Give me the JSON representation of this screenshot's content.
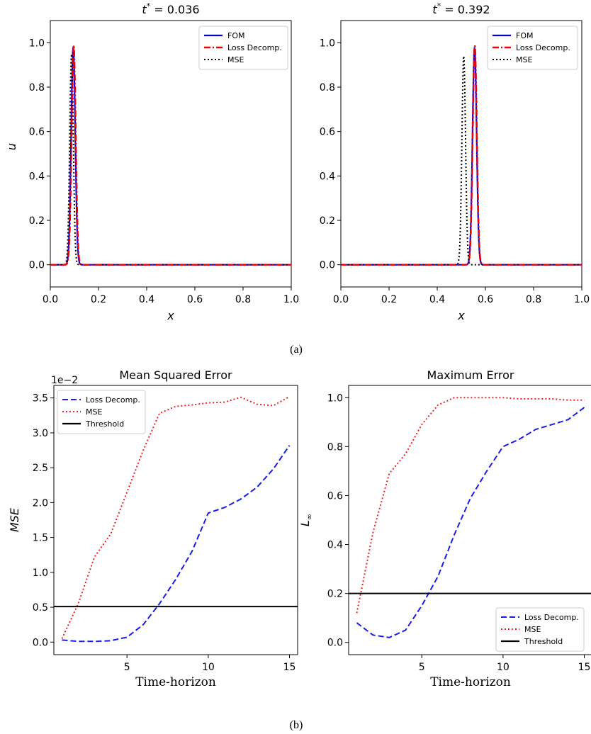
{
  "captions": [
    "(a)",
    "(b)"
  ],
  "colors": {
    "fom": "#0000ee",
    "loss": "#ee0000",
    "mse_dotted": "#000000",
    "loss_b": "#1a1aee",
    "mse_b": "#ee2020",
    "threshold": "#000000"
  },
  "chart_data": [
    {
      "type": "line",
      "title": "t* = 0.036",
      "title_var": "t",
      "title_sup": "*",
      "title_rest": " = 0.036",
      "xlabel": "x",
      "ylabel": "u",
      "xlim": [
        0,
        1
      ],
      "ylim": [
        -0.1,
        1.1
      ],
      "xticks": [
        "0.0",
        "0.2",
        "0.4",
        "0.6",
        "0.8",
        "1.0"
      ],
      "yticks": [
        "0.0",
        "0.2",
        "0.4",
        "0.6",
        "0.8",
        "1.0"
      ],
      "legend_position": "top-right",
      "series": [
        {
          "name": "FOM",
          "style": "solid",
          "peak_x": 0.095,
          "peak_y": 0.98,
          "width": 0.0085
        },
        {
          "name": "Loss Decomp.",
          "style": "dashdot",
          "peak_x": 0.097,
          "peak_y": 0.99,
          "width": 0.0085
        },
        {
          "name": "MSE",
          "style": "dotted",
          "peak_x": 0.088,
          "peak_y": 0.95,
          "width": 0.0075
        }
      ]
    },
    {
      "type": "line",
      "title": "t* = 0.392",
      "title_var": "t",
      "title_sup": "*",
      "title_rest": " = 0.392",
      "xlabel": "x",
      "ylabel": "",
      "xlim": [
        0,
        1
      ],
      "ylim": [
        -0.1,
        1.1
      ],
      "xticks": [
        "0.0",
        "0.2",
        "0.4",
        "0.6",
        "0.8",
        "1.0"
      ],
      "yticks": [
        "0.0",
        "0.2",
        "0.4",
        "0.6",
        "0.8",
        "1.0"
      ],
      "legend_position": "top-right",
      "series": [
        {
          "name": "FOM",
          "style": "solid",
          "peak_x": 0.555,
          "peak_y": 0.98,
          "width": 0.0085
        },
        {
          "name": "Loss Decomp.",
          "style": "dashdot",
          "peak_x": 0.556,
          "peak_y": 0.99,
          "width": 0.0085
        },
        {
          "name": "MSE",
          "style": "dotted",
          "peak_x": 0.51,
          "peak_y": 0.94,
          "width": 0.0075
        }
      ]
    },
    {
      "type": "line",
      "title": "Mean Squared Error",
      "xlabel": "Time-horizon",
      "ylabel": "MSE",
      "y_multiplier": "1e−2",
      "xlim": [
        0.5,
        15.5
      ],
      "ylim": [
        -0.18,
        3.68
      ],
      "xticks": [
        5,
        10,
        15
      ],
      "yticks": [
        "0.0",
        "0.5",
        "1.0",
        "1.5",
        "2.0",
        "2.5",
        "3.0",
        "3.5"
      ],
      "ytick_values": [
        0,
        0.5,
        1.0,
        1.5,
        2.0,
        2.5,
        3.0,
        3.5
      ],
      "legend_position": "top-left",
      "x": [
        1,
        2,
        3,
        4,
        5,
        6,
        7,
        8,
        9,
        10,
        11,
        12,
        13,
        14,
        15
      ],
      "series": [
        {
          "name": "Loss Decomp.",
          "style": "dashed",
          "values": [
            0.03,
            0.01,
            0.01,
            0.02,
            0.07,
            0.25,
            0.55,
            0.9,
            1.3,
            1.85,
            1.93,
            2.05,
            2.22,
            2.48,
            2.82
          ]
        },
        {
          "name": "MSE",
          "style": "dotted",
          "values": [
            0.05,
            0.55,
            1.22,
            1.55,
            2.15,
            2.75,
            3.28,
            3.38,
            3.4,
            3.43,
            3.44,
            3.51,
            3.41,
            3.39,
            3.52
          ]
        },
        {
          "name": "Threshold",
          "style": "solid",
          "constant": 0.51
        }
      ]
    },
    {
      "type": "line",
      "title": "Maximum Error",
      "xlabel": "Time-horizon",
      "ylabel": "L∞",
      "ylabel_main": "L",
      "ylabel_sub": "∞",
      "xlim": [
        0.5,
        15.5
      ],
      "ylim": [
        -0.05,
        1.05
      ],
      "xticks": [
        5,
        10,
        15
      ],
      "yticks": [
        "0.0",
        "0.2",
        "0.4",
        "0.6",
        "0.8",
        "1.0"
      ],
      "ytick_values": [
        0,
        0.2,
        0.4,
        0.6,
        0.8,
        1.0
      ],
      "legend_position": "bottom-right",
      "x": [
        1,
        2,
        3,
        4,
        5,
        6,
        7,
        8,
        9,
        10,
        11,
        12,
        13,
        14,
        15
      ],
      "series": [
        {
          "name": "Loss Decomp.",
          "style": "dashed",
          "values": [
            0.08,
            0.03,
            0.02,
            0.05,
            0.15,
            0.27,
            0.44,
            0.59,
            0.7,
            0.8,
            0.83,
            0.87,
            0.89,
            0.91,
            0.96
          ]
        },
        {
          "name": "MSE",
          "style": "dotted",
          "values": [
            0.12,
            0.45,
            0.69,
            0.77,
            0.89,
            0.97,
            1.0,
            1.0,
            1.0,
            1.0,
            0.995,
            0.995,
            0.995,
            0.99,
            0.99
          ]
        },
        {
          "name": "Threshold",
          "style": "solid",
          "constant": 0.2
        }
      ]
    }
  ]
}
